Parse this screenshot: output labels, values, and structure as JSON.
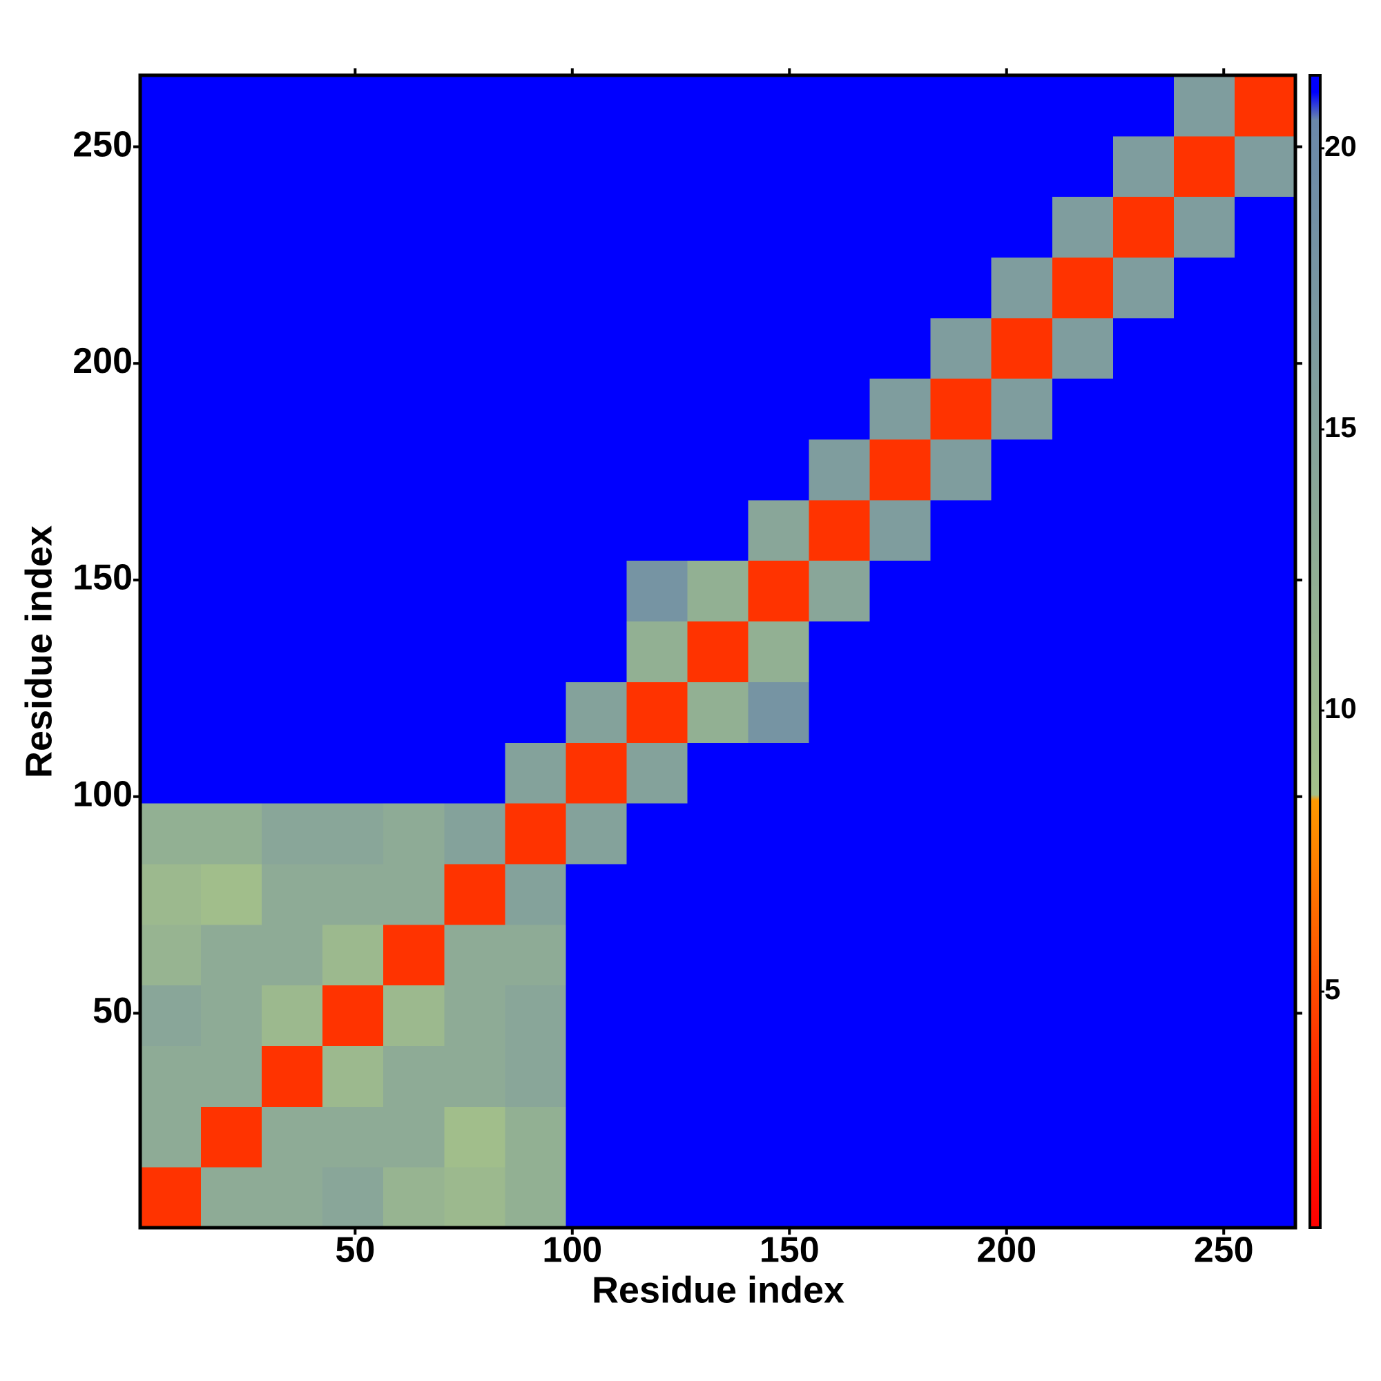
{
  "chart_data": {
    "type": "heatmap",
    "xlabel": "Residue index",
    "ylabel": "Residue index",
    "xlim": [
      0.5,
      266.5
    ],
    "ylim": [
      0.5,
      266.5
    ],
    "xticks": [
      50,
      100,
      150,
      200,
      250
    ],
    "yticks": [
      50,
      100,
      150,
      200,
      250
    ],
    "x": [
      7.5,
      21.5,
      35.5,
      49.5,
      63.5,
      77.5,
      91.5,
      105.5,
      119.5,
      133.5,
      147.5,
      161.5,
      175.5,
      189.5,
      203.5,
      217.5,
      231.5,
      245.5,
      259.5
    ],
    "y": [
      7.5,
      21.5,
      35.5,
      49.5,
      63.5,
      77.5,
      91.5,
      105.5,
      119.5,
      133.5,
      147.5,
      161.5,
      175.5,
      189.5,
      203.5,
      217.5,
      231.5,
      245.5,
      259.5
    ],
    "z": [
      [
        4,
        13,
        13,
        14,
        11,
        10,
        12,
        21,
        21,
        21,
        21,
        21,
        21,
        21,
        21,
        21,
        21,
        21,
        21
      ],
      [
        13,
        4,
        13,
        13,
        13,
        9,
        12,
        21,
        21,
        21,
        21,
        21,
        21,
        21,
        21,
        21,
        21,
        21,
        21
      ],
      [
        13,
        13,
        4,
        10,
        13,
        13,
        14,
        21,
        21,
        21,
        21,
        21,
        21,
        21,
        21,
        21,
        21,
        21,
        21
      ],
      [
        14,
        13,
        10,
        4,
        10,
        13,
        14,
        21,
        21,
        21,
        21,
        21,
        21,
        21,
        21,
        21,
        21,
        21,
        21
      ],
      [
        11,
        13,
        13,
        10,
        4,
        13,
        13,
        21,
        21,
        21,
        21,
        21,
        21,
        21,
        21,
        21,
        21,
        21,
        21
      ],
      [
        10,
        9,
        13,
        13,
        13,
        4,
        15,
        21,
        21,
        21,
        21,
        21,
        21,
        21,
        21,
        21,
        21,
        21,
        21
      ],
      [
        12,
        12,
        14,
        14,
        13,
        15,
        4,
        15,
        21,
        21,
        21,
        21,
        21,
        21,
        21,
        21,
        21,
        21,
        21
      ],
      [
        21,
        21,
        21,
        21,
        21,
        21,
        15,
        4,
        15,
        21,
        21,
        21,
        21,
        21,
        21,
        21,
        21,
        21,
        21
      ],
      [
        21,
        21,
        21,
        21,
        21,
        21,
        21,
        15,
        4,
        12,
        18,
        21,
        21,
        21,
        21,
        21,
        21,
        21,
        21
      ],
      [
        21,
        21,
        21,
        21,
        21,
        21,
        21,
        21,
        12,
        4,
        12,
        21,
        21,
        21,
        21,
        21,
        21,
        21,
        21
      ],
      [
        21,
        21,
        21,
        21,
        21,
        21,
        21,
        21,
        18,
        12,
        4,
        14,
        21,
        21,
        21,
        21,
        21,
        21,
        21
      ],
      [
        21,
        21,
        21,
        21,
        21,
        21,
        21,
        21,
        21,
        21,
        14,
        4,
        16,
        21,
        21,
        21,
        21,
        21,
        21
      ],
      [
        21,
        21,
        21,
        21,
        21,
        21,
        21,
        21,
        21,
        21,
        21,
        16,
        4,
        16,
        21,
        21,
        21,
        21,
        21
      ],
      [
        21,
        21,
        21,
        21,
        21,
        21,
        21,
        21,
        21,
        21,
        21,
        21,
        16,
        4,
        16,
        21,
        21,
        21,
        21
      ],
      [
        21,
        21,
        21,
        21,
        21,
        21,
        21,
        21,
        21,
        21,
        21,
        21,
        21,
        16,
        4,
        16,
        21,
        21,
        21
      ],
      [
        21,
        21,
        21,
        21,
        21,
        21,
        21,
        21,
        21,
        21,
        21,
        21,
        21,
        21,
        16,
        4,
        16,
        21,
        21
      ],
      [
        21,
        21,
        21,
        21,
        21,
        21,
        21,
        21,
        21,
        21,
        21,
        21,
        21,
        21,
        21,
        16,
        4,
        16,
        21
      ],
      [
        21,
        21,
        21,
        21,
        21,
        21,
        21,
        21,
        21,
        21,
        21,
        21,
        21,
        21,
        21,
        21,
        16,
        4,
        16
      ],
      [
        21,
        21,
        21,
        21,
        21,
        21,
        21,
        21,
        21,
        21,
        21,
        21,
        21,
        21,
        21,
        21,
        21,
        16,
        4
      ]
    ],
    "zlim": [
      0.8,
      21.3
    ],
    "colorbar_ticks": [
      5,
      10,
      15,
      20
    ],
    "colorscale": [
      [
        0.8,
        "#ff0000"
      ],
      [
        4,
        "#ff3300"
      ],
      [
        8.4,
        "#ff9900"
      ],
      [
        8.5,
        "#a3c08a"
      ],
      [
        20.5,
        "#6a88aa"
      ],
      [
        21,
        "#0000ff"
      ],
      [
        21.3,
        "#0000ff"
      ]
    ]
  }
}
